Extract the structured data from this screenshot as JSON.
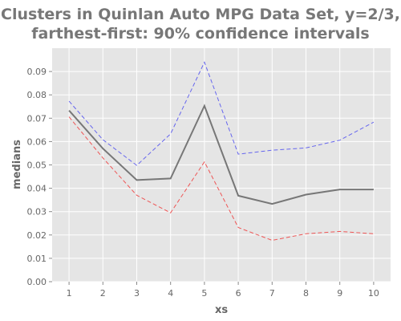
{
  "chart_data": {
    "type": "line",
    "title_lines": [
      "Clusters in Quinlan Auto MPG Data Set, y=2/3,",
      "farthest-first: 90% confidence intervals"
    ],
    "xlabel": "xs",
    "ylabel": "medians",
    "x": [
      1,
      2,
      3,
      4,
      5,
      6,
      7,
      8,
      9,
      10
    ],
    "xlim": [
      0.5,
      10.5
    ],
    "ylim": [
      0,
      0.1
    ],
    "yticks": [
      "0.00",
      "0.01",
      "0.02",
      "0.03",
      "0.04",
      "0.05",
      "0.06",
      "0.07",
      "0.08",
      "0.09"
    ],
    "yticks_values": [
      0,
      0.01,
      0.02,
      0.03,
      0.04,
      0.05,
      0.06,
      0.07,
      0.08,
      0.09
    ],
    "xticks": [
      "1",
      "2",
      "3",
      "4",
      "5",
      "6",
      "7",
      "8",
      "9",
      "10"
    ],
    "grid": true,
    "background": "#e5e5e5",
    "series": [
      {
        "role": "upper",
        "color": "#6666ee",
        "style": "dashed",
        "values": [
          0.0773,
          0.0608,
          0.0498,
          0.0633,
          0.094,
          0.0546,
          0.0563,
          0.0573,
          0.0606,
          0.0683
        ]
      },
      {
        "role": "median",
        "color": "#777777",
        "style": "solid",
        "values": [
          0.0733,
          0.057,
          0.0435,
          0.0442,
          0.0753,
          0.0368,
          0.0333,
          0.0373,
          0.0395,
          0.0395
        ]
      },
      {
        "role": "lower",
        "color": "#ee5555",
        "style": "dashed",
        "values": [
          0.0706,
          0.053,
          0.037,
          0.0295,
          0.0513,
          0.0232,
          0.0177,
          0.0205,
          0.0215,
          0.0205
        ]
      }
    ]
  }
}
